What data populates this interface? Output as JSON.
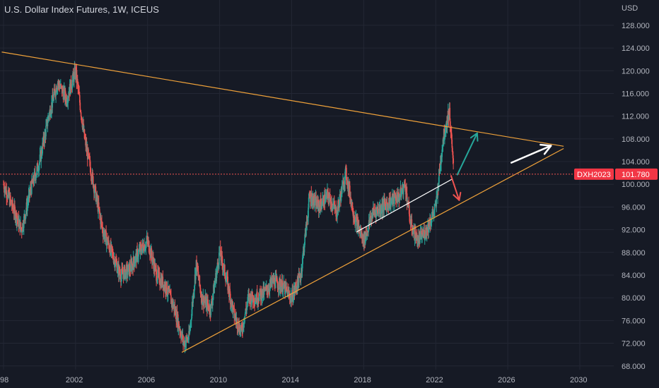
{
  "title": "U.S. Dollar Index Futures, 1W, ICEUS",
  "currency": "USD",
  "colors": {
    "background": "#161a25",
    "grid": "#232734",
    "axis_text": "#b2b5be",
    "bull": "#26a69a",
    "bear": "#ef5350",
    "trendline": "#f0a23a",
    "white": "#ffffff",
    "price_line": "#ef5350",
    "badge": "#f23645"
  },
  "chart_data": {
    "type": "line",
    "series": [
      {
        "x": [
          1998.0,
          1998.5,
          1999.0,
          1999.5,
          2000.0,
          2000.5,
          2001.0,
          2001.5,
          2002.0,
          2002.5,
          2003.0,
          2003.5,
          2004.0,
          2004.5,
          2005.0,
          2005.5,
          2006.0,
          2006.5,
          2007.0,
          2007.5,
          2008.0,
          2008.3,
          2008.7,
          2009.0,
          2009.5,
          2010.0,
          2010.4,
          2010.8,
          2011.2,
          2011.6,
          2012.0,
          2012.5,
          2013.0,
          2013.5,
          2014.0,
          2014.5,
          2015.0,
          2015.5,
          2016.0,
          2016.5,
          2017.0,
          2017.5,
          2018.0,
          2018.5,
          2019.0,
          2019.5,
          2020.0,
          2020.3,
          2020.6,
          2021.0,
          2021.5,
          2022.0,
          2022.4,
          2022.75,
          2023.0
        ],
        "values": [
          100,
          96,
          92,
          99,
          104,
          112,
          118,
          115,
          120,
          108,
          100,
          92,
          88,
          84,
          85,
          88,
          90,
          84,
          82,
          78,
          72,
          73,
          86,
          80,
          78,
          88,
          83,
          77,
          74,
          80,
          80,
          81,
          83,
          82,
          80,
          84,
          98,
          96,
          98,
          95,
          102,
          94,
          90,
          95,
          96,
          97,
          98,
          100,
          93,
          90,
          92,
          96,
          108,
          113,
          101.78
        ]
      }
    ],
    "ylim": [
      66,
      130
    ],
    "yticks": [
      "68.000",
      "72.000",
      "76.000",
      "80.000",
      "84.000",
      "88.000",
      "92.000",
      "96.000",
      "100.000",
      "104.000",
      "108.000",
      "112.000",
      "116.000",
      "120.000",
      "124.000",
      "128.000"
    ],
    "xlim": [
      1997.9,
      2031.5
    ],
    "xticks": [
      "98",
      "2002",
      "2006",
      "2010",
      "2014",
      "2018",
      "2022",
      "2026",
      "2030"
    ],
    "last_price": {
      "label": "DXH2023",
      "value": "101.780"
    },
    "annotations": [
      {
        "type": "trendline",
        "name": "upper-resistance",
        "points": [
          [
            1997.9,
            123.3
          ],
          [
            2029.1,
            106.7
          ]
        ]
      },
      {
        "type": "trendline",
        "name": "lower-support",
        "points": [
          [
            2007.9,
            70.4
          ],
          [
            2029.1,
            106.3
          ]
        ]
      },
      {
        "type": "trendline",
        "name": "white-channel",
        "points": [
          [
            2017.6,
            91.6
          ],
          [
            2022.9,
            100.9
          ]
        ]
      },
      {
        "type": "arrow",
        "name": "green-up-arrow",
        "points": [
          [
            2023.2,
            101.7
          ],
          [
            2024.3,
            109.0
          ]
        ]
      },
      {
        "type": "arrow",
        "name": "red-down-arrow",
        "points": [
          [
            2022.85,
            101.5
          ],
          [
            2023.3,
            97.2
          ]
        ]
      },
      {
        "type": "arrow",
        "name": "white-right-arrow",
        "points": [
          [
            2026.2,
            103.8
          ],
          [
            2028.4,
            106.8
          ]
        ]
      }
    ],
    "grid": true,
    "legend": "none"
  }
}
